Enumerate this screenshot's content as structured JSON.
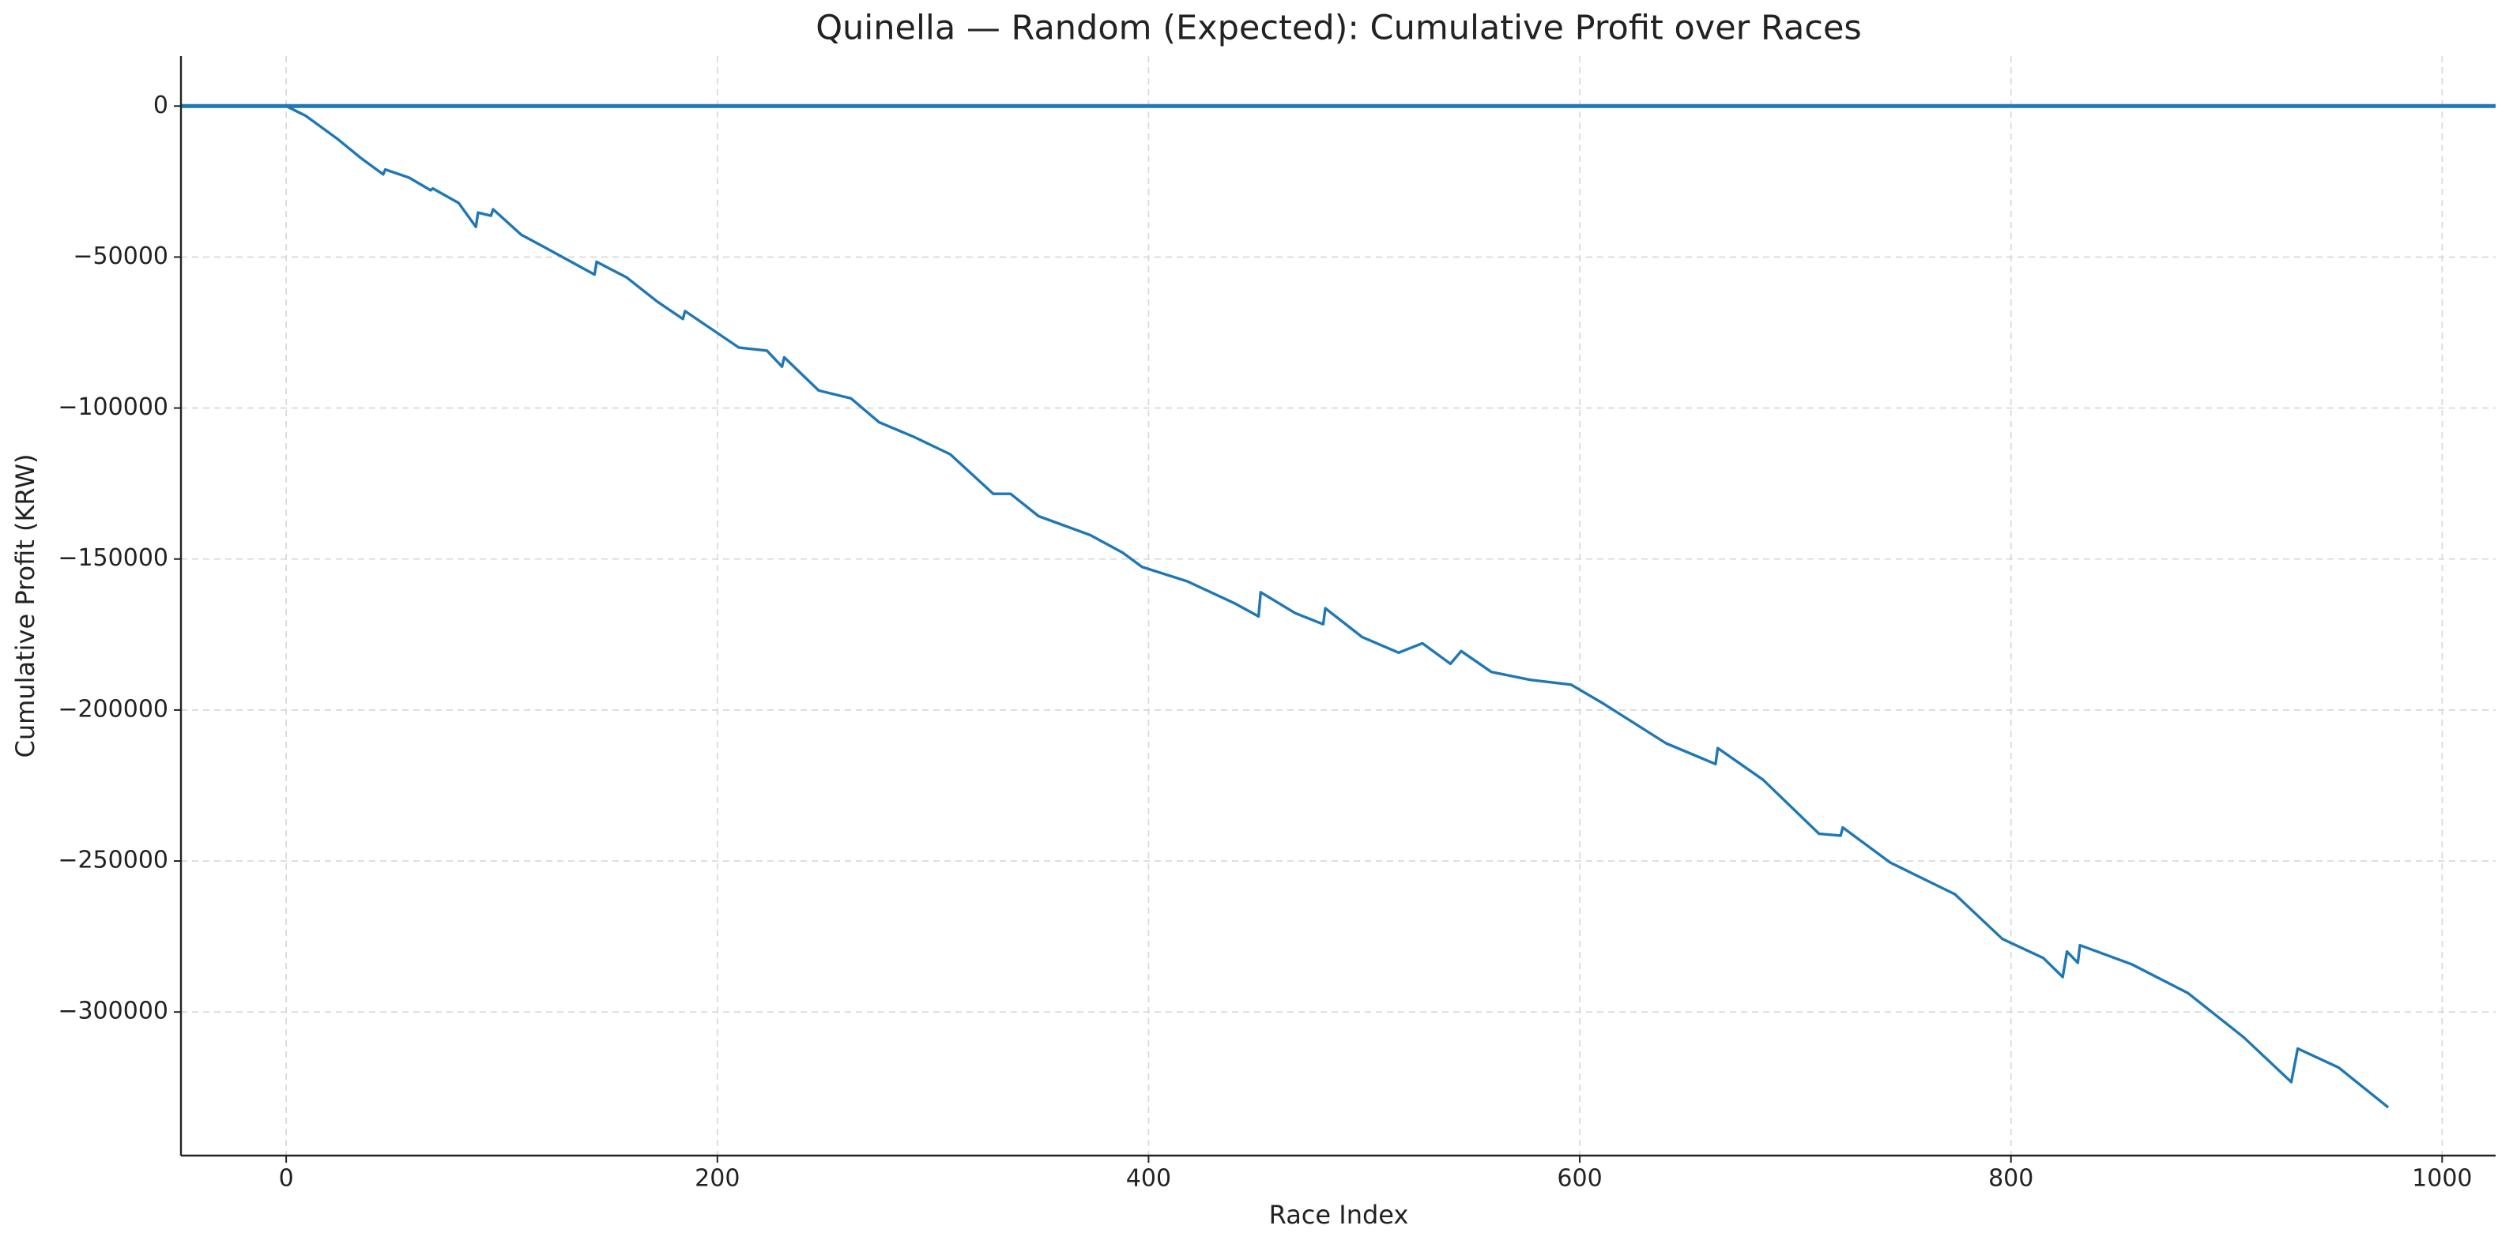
{
  "chart_data": {
    "type": "line",
    "title": "Quinella — Random (Expected): Cumulative Profit over Races",
    "xlabel": "Race Index",
    "ylabel": "Cumulative Profit (KRW)",
    "xlim": [
      -48.8,
      1024.8
    ],
    "ylim": [
      -347550,
      16550
    ],
    "xticks": [
      0,
      200,
      400,
      600,
      800,
      1000
    ],
    "yticks": [
      0,
      {
        "value": -50000,
        "label": "−50000"
      },
      {
        "value": -100000,
        "label": "−100000"
      },
      {
        "value": -150000,
        "label": "−150000"
      },
      {
        "value": -200000,
        "label": "−200000"
      },
      {
        "value": -250000,
        "label": "−250000"
      },
      {
        "value": -300000,
        "label": "−300000"
      }
    ],
    "grid": true,
    "hline": {
      "value": 0,
      "color": "#1f77b4"
    },
    "x": [
      0,
      9,
      24,
      35,
      45,
      46,
      57,
      67,
      68,
      80,
      88,
      89,
      95,
      96,
      109,
      120,
      143,
      144,
      158,
      172,
      184,
      185,
      198,
      210,
      223,
      230,
      231,
      247,
      262,
      275,
      291,
      308,
      328,
      336,
      349,
      373,
      388,
      397,
      418,
      440,
      451,
      452,
      468,
      481,
      482,
      499,
      516,
      527,
      540,
      545,
      559,
      577,
      596,
      611,
      640,
      663,
      664,
      685,
      711,
      721,
      722,
      744,
      774,
      796,
      815,
      824,
      826,
      831,
      832,
      856,
      882,
      908,
      930,
      933,
      952,
      975
    ],
    "series": [
      {
        "name": "Cumulative Profit",
        "color": "#1f77b4",
        "values": [
          0,
          -3200,
          -11000,
          -17400,
          -22600,
          -21000,
          -23700,
          -27900,
          -27300,
          -32100,
          -40000,
          -35300,
          -36300,
          -34200,
          -42600,
          -46800,
          -55800,
          -51600,
          -56800,
          -64700,
          -70500,
          -67900,
          -74200,
          -80000,
          -81000,
          -86300,
          -83200,
          -94200,
          -96800,
          -104700,
          -109500,
          -115300,
          -128400,
          -128400,
          -135800,
          -142100,
          -147900,
          -152600,
          -157400,
          -164700,
          -169000,
          -161000,
          -167900,
          -171600,
          -166300,
          -175800,
          -181000,
          -177900,
          -184700,
          -180500,
          -187400,
          -190000,
          -191600,
          -197900,
          -211000,
          -217900,
          -212600,
          -223100,
          -241000,
          -241600,
          -238900,
          -250500,
          -261000,
          -275800,
          -282100,
          -288400,
          -280000,
          -283700,
          -277900,
          -284200,
          -293700,
          -308400,
          -323200,
          -312100,
          -318400,
          -331600
        ]
      }
    ]
  }
}
